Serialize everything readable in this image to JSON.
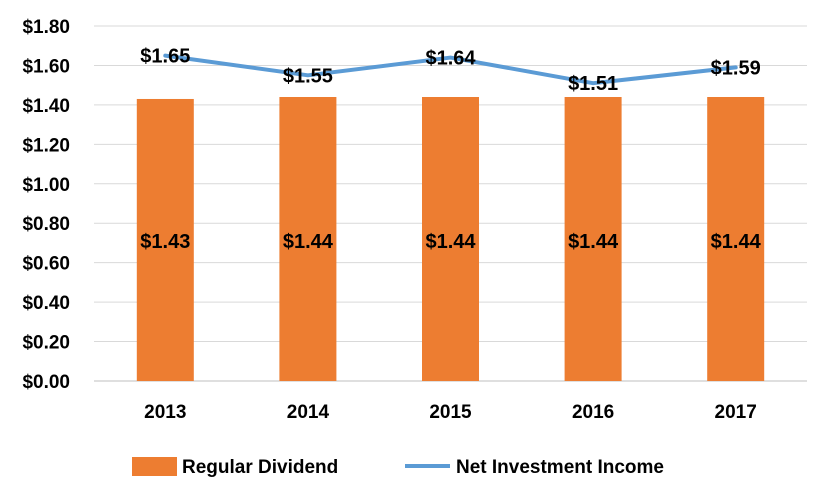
{
  "chart_data": {
    "type": "bar",
    "categories": [
      "2013",
      "2014",
      "2015",
      "2016",
      "2017"
    ],
    "ylim": [
      0,
      1.8
    ],
    "yticks": [
      "$0.00",
      "$0.20",
      "$0.40",
      "$0.60",
      "$0.80",
      "$1.00",
      "$1.20",
      "$1.40",
      "$1.60",
      "$1.80"
    ],
    "grid": true,
    "legend_position": "bottom",
    "series": [
      {
        "name": "Regular Dividend",
        "kind": "bar",
        "color": "#ED7D31",
        "values": [
          1.43,
          1.44,
          1.44,
          1.44,
          1.44
        ],
        "labels": [
          "$1.43",
          "$1.44",
          "$1.44",
          "$1.44",
          "$1.44"
        ]
      },
      {
        "name": "Net Investment Income",
        "kind": "line",
        "color": "#5B9BD5",
        "values": [
          1.65,
          1.55,
          1.64,
          1.51,
          1.59
        ],
        "labels": [
          "$1.65",
          "$1.55",
          "$1.64",
          "$1.51",
          "$1.59"
        ]
      }
    ]
  }
}
